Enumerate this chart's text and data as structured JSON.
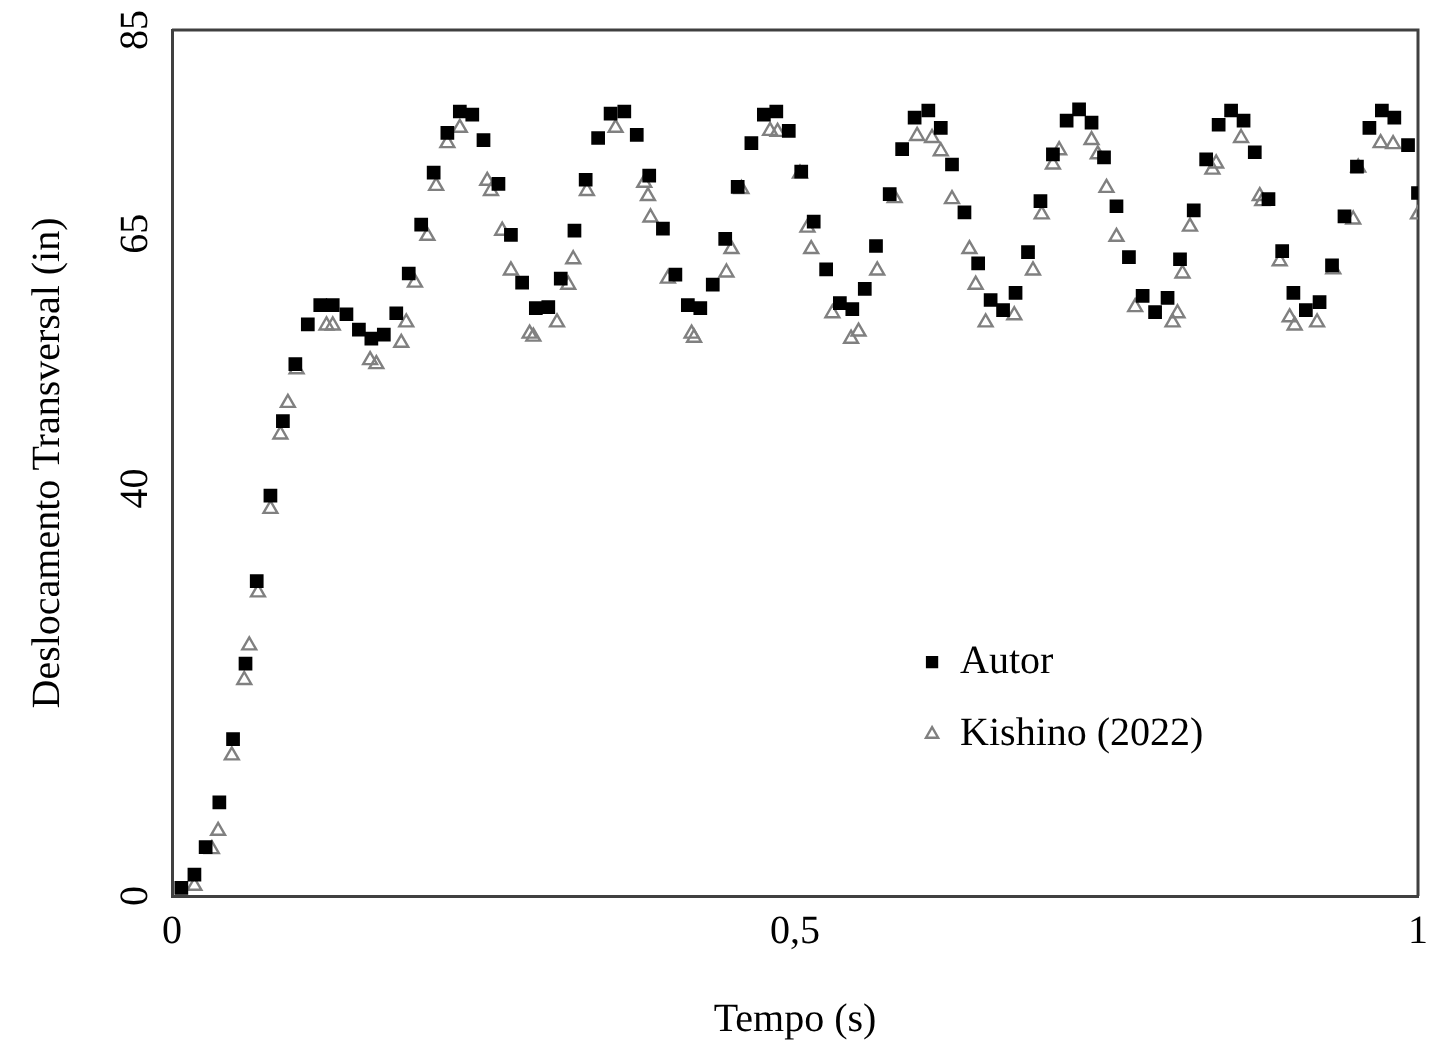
{
  "chart_data": {
    "type": "scatter",
    "xlabel": "Tempo (s)",
    "ylabel": "Deslocamento Transversal (in)",
    "xlim": [
      0,
      1
    ],
    "ylim": [
      0,
      85
    ],
    "xticks": [
      0,
      {
        "value": 0.5,
        "label": "0,5"
      },
      1
    ],
    "yticks": [
      0,
      40,
      65,
      85
    ],
    "grid": false,
    "legend": "bottom right",
    "series": [
      {
        "name": "Autor",
        "color": "#000000",
        "marker": "square",
        "x": [
          0.0075,
          0.018,
          0.027,
          0.038,
          0.049,
          0.059,
          0.068,
          0.079,
          0.089,
          0.099,
          0.109,
          0.119,
          0.129,
          0.14,
          0.15,
          0.16,
          0.17,
          0.18,
          0.19,
          0.2,
          0.21,
          0.221,
          0.231,
          0.241,
          0.25,
          0.262,
          0.272,
          0.281,
          0.292,
          0.302,
          0.312,
          0.323,
          0.332,
          0.342,
          0.352,
          0.363,
          0.373,
          0.383,
          0.394,
          0.404,
          0.414,
          0.424,
          0.434,
          0.444,
          0.454,
          0.465,
          0.475,
          0.485,
          0.495,
          0.505,
          0.515,
          0.525,
          0.536,
          0.546,
          0.556,
          0.565,
          0.576,
          0.586,
          0.596,
          0.607,
          0.617,
          0.626,
          0.636,
          0.647,
          0.657,
          0.667,
          0.677,
          0.687,
          0.697,
          0.707,
          0.718,
          0.728,
          0.738,
          0.748,
          0.758,
          0.768,
          0.779,
          0.789,
          0.799,
          0.809,
          0.82,
          0.83,
          0.84,
          0.85,
          0.86,
          0.869,
          0.88,
          0.891,
          0.9,
          0.91,
          0.921,
          0.931,
          0.941,
          0.951,
          0.961,
          0.971,
          0.981,
          0.992,
          1.0
        ],
        "values": [
          0.8,
          2.1,
          4.8,
          9.2,
          15.4,
          22.8,
          30.9,
          39.3,
          46.6,
          52.2,
          56.1,
          58.0,
          58.0,
          57.1,
          55.6,
          54.7,
          55.1,
          57.2,
          61.1,
          65.9,
          71.0,
          74.9,
          77.0,
          76.7,
          74.2,
          69.9,
          64.9,
          60.2,
          57.7,
          57.8,
          60.6,
          65.3,
          70.3,
          74.4,
          76.8,
          77.0,
          74.7,
          70.7,
          65.5,
          61.0,
          58.0,
          57.7,
          60.0,
          64.5,
          69.6,
          73.9,
          76.7,
          77.0,
          75.1,
          71.1,
          66.2,
          61.5,
          58.2,
          57.6,
          59.6,
          63.8,
          68.9,
          73.3,
          76.4,
          77.1,
          75.4,
          71.8,
          67.1,
          62.1,
          58.5,
          57.5,
          59.2,
          63.2,
          68.2,
          72.8,
          76.1,
          77.2,
          75.9,
          72.5,
          67.7,
          62.7,
          58.9,
          57.3,
          58.7,
          62.5,
          67.3,
          72.3,
          75.7,
          77.1,
          76.1,
          73.0,
          68.4,
          63.3,
          59.2,
          57.5,
          58.3,
          61.9,
          66.7,
          71.6,
          75.4,
          77.1,
          76.4,
          73.7,
          69.0
        ]
      },
      {
        "name": "Kishino (2022)",
        "color": "#808080",
        "marker": "triangle",
        "x": [
          0.018,
          0.032,
          0.037,
          0.048,
          0.058,
          0.062,
          0.069,
          0.079,
          0.087,
          0.093,
          0.1,
          0.124,
          0.129,
          0.159,
          0.164,
          0.184,
          0.188,
          0.195,
          0.205,
          0.212,
          0.221,
          0.231,
          0.253,
          0.256,
          0.265,
          0.272,
          0.287,
          0.29,
          0.309,
          0.318,
          0.322,
          0.333,
          0.356,
          0.379,
          0.382,
          0.384,
          0.398,
          0.417,
          0.419,
          0.445,
          0.449,
          0.457,
          0.48,
          0.486,
          0.504,
          0.51,
          0.513,
          0.53,
          0.545,
          0.551,
          0.566,
          0.58,
          0.598,
          0.61,
          0.617,
          0.626,
          0.64,
          0.645,
          0.653,
          0.676,
          0.691,
          0.698,
          0.707,
          0.712,
          0.738,
          0.743,
          0.75,
          0.758,
          0.773,
          0.803,
          0.807,
          0.811,
          0.817,
          0.835,
          0.838,
          0.858,
          0.873,
          0.875,
          0.889,
          0.897,
          0.901,
          0.919,
          0.932,
          0.948,
          0.952,
          0.97,
          0.98,
          1.0
        ],
        "values": [
          1.0,
          4.6,
          6.4,
          13.8,
          21.2,
          24.6,
          29.8,
          38.0,
          45.3,
          48.4,
          51.7,
          56.0,
          56.0,
          52.6,
          52.2,
          54.3,
          56.3,
          60.2,
          64.8,
          69.7,
          73.9,
          75.4,
          70.2,
          69.2,
          65.3,
          61.4,
          55.2,
          54.9,
          56.3,
          60.0,
          62.5,
          69.2,
          75.4,
          70.0,
          68.7,
          66.6,
          60.6,
          55.2,
          54.8,
          61.2,
          63.5,
          69.4,
          75.1,
          75.0,
          70.9,
          65.6,
          63.5,
          57.2,
          54.7,
          55.4,
          61.4,
          68.5,
          74.6,
          74.4,
          73.1,
          68.4,
          63.5,
          60.0,
          56.3,
          57.0,
          61.4,
          66.9,
          71.8,
          73.2,
          74.2,
          72.8,
          69.5,
          64.7,
          57.8,
          56.3,
          57.2,
          61.1,
          65.7,
          71.3,
          71.9,
          74.4,
          68.7,
          68.2,
          62.3,
          56.8,
          56.0,
          56.3,
          61.5,
          66.4,
          71.5,
          73.9,
          73.8,
          66.9
        ]
      }
    ]
  }
}
